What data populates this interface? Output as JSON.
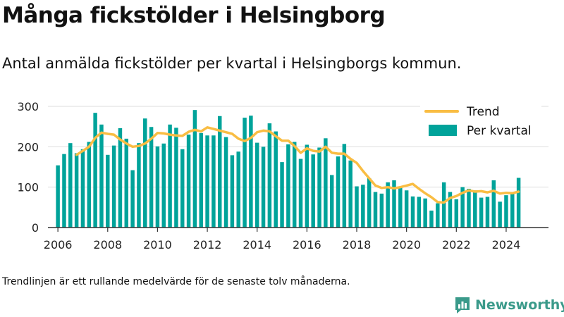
{
  "title": "Många fickstölder i Helsingborg",
  "subtitle": "Antal anmälda fickstölder per kvartal i Helsingborgs kommun.",
  "footnote": "Trendlinjen är ett rullande medelvärde för de senaste tolv månaderna.",
  "brand": "Newsworthy",
  "colors": {
    "bars": "#00a39a",
    "trend": "#f9bd43",
    "grid": "#dddddd",
    "axis": "#333333",
    "brand": "#3a9a8a"
  },
  "chart_data": {
    "type": "bar",
    "title": "Många fickstölder i Helsingborg",
    "subtitle": "Antal anmälda fickstölder per kvartal i Helsingborgs kommun.",
    "xlabel": "",
    "ylabel": "",
    "ylim": [
      0,
      300
    ],
    "yticks": [
      0,
      100,
      200,
      300
    ],
    "xlim": [
      2005.6,
      2025.7
    ],
    "xticks": [
      2006,
      2008,
      2010,
      2012,
      2014,
      2016,
      2018,
      2020,
      2022,
      2024
    ],
    "grid": true,
    "legend_position": "top-right",
    "x": [
      2006.0,
      2006.25,
      2006.5,
      2006.75,
      2007.0,
      2007.25,
      2007.5,
      2007.75,
      2008.0,
      2008.25,
      2008.5,
      2008.75,
      2009.0,
      2009.25,
      2009.5,
      2009.75,
      2010.0,
      2010.25,
      2010.5,
      2010.75,
      2011.0,
      2011.25,
      2011.5,
      2011.75,
      2012.0,
      2012.25,
      2012.5,
      2012.75,
      2013.0,
      2013.25,
      2013.5,
      2013.75,
      2014.0,
      2014.25,
      2014.5,
      2014.75,
      2015.0,
      2015.25,
      2015.5,
      2015.75,
      2016.0,
      2016.25,
      2016.5,
      2016.75,
      2017.0,
      2017.25,
      2017.5,
      2017.75,
      2018.0,
      2018.25,
      2018.5,
      2018.75,
      2019.0,
      2019.25,
      2019.5,
      2019.75,
      2020.0,
      2020.25,
      2020.5,
      2020.75,
      2021.0,
      2021.25,
      2021.5,
      2021.75,
      2022.0,
      2022.25,
      2022.5,
      2022.75,
      2023.0,
      2023.25,
      2023.5,
      2023.75,
      2024.0,
      2024.25,
      2024.5
    ],
    "series": [
      {
        "name": "Per kvartal",
        "type": "bar",
        "values": [
          154,
          182,
          209,
          184,
          194,
          212,
          284,
          255,
          180,
          203,
          246,
          220,
          142,
          209,
          270,
          249,
          201,
          208,
          255,
          247,
          194,
          230,
          291,
          234,
          228,
          228,
          276,
          224,
          179,
          188,
          272,
          277,
          210,
          200,
          258,
          238,
          162,
          206,
          212,
          170,
          205,
          181,
          198,
          221,
          130,
          176,
          207,
          166,
          102,
          106,
          122,
          88,
          84,
          112,
          117,
          100,
          92,
          77,
          76,
          72,
          42,
          60,
          112,
          88,
          70,
          100,
          96,
          92,
          74,
          76,
          117,
          64,
          80,
          85,
          123
        ]
      },
      {
        "name": "Trend",
        "type": "line",
        "x": [
          2006.75,
          2007.0,
          2007.25,
          2007.5,
          2007.75,
          2008.0,
          2008.25,
          2008.5,
          2008.75,
          2009.0,
          2009.25,
          2009.5,
          2009.75,
          2010.0,
          2010.25,
          2010.5,
          2010.75,
          2011.0,
          2011.25,
          2011.5,
          2011.75,
          2012.0,
          2012.25,
          2012.5,
          2012.75,
          2013.0,
          2013.25,
          2013.5,
          2013.75,
          2014.0,
          2014.25,
          2014.5,
          2014.75,
          2015.0,
          2015.25,
          2015.5,
          2015.75,
          2016.0,
          2016.25,
          2016.5,
          2016.75,
          2017.0,
          2017.25,
          2017.5,
          2017.75,
          2018.0,
          2018.25,
          2018.5,
          2018.75,
          2019.0,
          2019.25,
          2019.5,
          2019.75,
          2020.0,
          2020.25,
          2020.5,
          2020.75,
          2021.0,
          2021.25,
          2021.5,
          2021.75,
          2022.0,
          2022.25,
          2022.5,
          2022.75,
          2023.0,
          2023.25,
          2023.5,
          2023.75,
          2024.0,
          2024.25,
          2024.5
        ],
        "values": [
          180,
          190,
          200,
          222,
          235,
          232,
          230,
          218,
          208,
          200,
          202,
          208,
          220,
          234,
          233,
          230,
          228,
          227,
          237,
          242,
          238,
          248,
          244,
          240,
          236,
          232,
          220,
          214,
          222,
          236,
          240,
          238,
          226,
          215,
          215,
          202,
          185,
          196,
          190,
          188,
          200,
          185,
          183,
          183,
          170,
          160,
          140,
          122,
          104,
          98,
          100,
          97,
          100,
          104,
          108,
          96,
          85,
          75,
          63,
          62,
          73,
          78,
          86,
          92,
          89,
          90,
          87,
          91,
          84,
          86,
          85,
          89
        ]
      }
    ]
  }
}
